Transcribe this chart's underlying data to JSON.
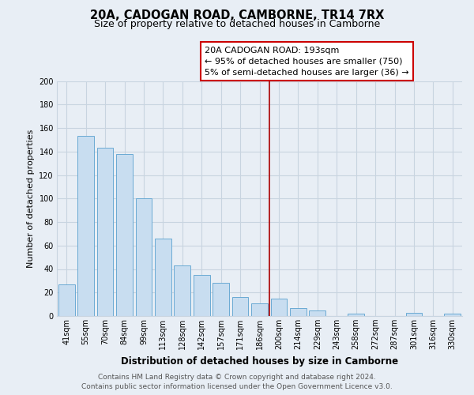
{
  "title": "20A, CADOGAN ROAD, CAMBORNE, TR14 7RX",
  "subtitle": "Size of property relative to detached houses in Camborne",
  "xlabel": "Distribution of detached houses by size in Camborne",
  "ylabel": "Number of detached properties",
  "categories": [
    "41sqm",
    "55sqm",
    "70sqm",
    "84sqm",
    "99sqm",
    "113sqm",
    "128sqm",
    "142sqm",
    "157sqm",
    "171sqm",
    "186sqm",
    "200sqm",
    "214sqm",
    "229sqm",
    "243sqm",
    "258sqm",
    "272sqm",
    "287sqm",
    "301sqm",
    "316sqm",
    "330sqm"
  ],
  "values": [
    27,
    153,
    143,
    138,
    100,
    66,
    43,
    35,
    28,
    16,
    11,
    15,
    7,
    5,
    0,
    2,
    0,
    0,
    3,
    0,
    2
  ],
  "bar_color": "#c8ddf0",
  "bar_edge_color": "#6aaad4",
  "vline_x": 10.5,
  "vline_color": "#aa0000",
  "annotation_box_text": "20A CADOGAN ROAD: 193sqm\n← 95% of detached houses are smaller (750)\n5% of semi-detached houses are larger (36) →",
  "ylim": [
    0,
    200
  ],
  "yticks": [
    0,
    20,
    40,
    60,
    80,
    100,
    120,
    140,
    160,
    180,
    200
  ],
  "footer_text": "Contains HM Land Registry data © Crown copyright and database right 2024.\nContains public sector information licensed under the Open Government Licence v3.0.",
  "background_color": "#e8eef5",
  "plot_bg_color": "#e8eef5",
  "grid_color": "#c8d4e0",
  "title_fontsize": 10.5,
  "subtitle_fontsize": 9,
  "xlabel_fontsize": 8.5,
  "ylabel_fontsize": 8,
  "tick_fontsize": 7,
  "annotation_fontsize": 8,
  "footer_fontsize": 6.5
}
